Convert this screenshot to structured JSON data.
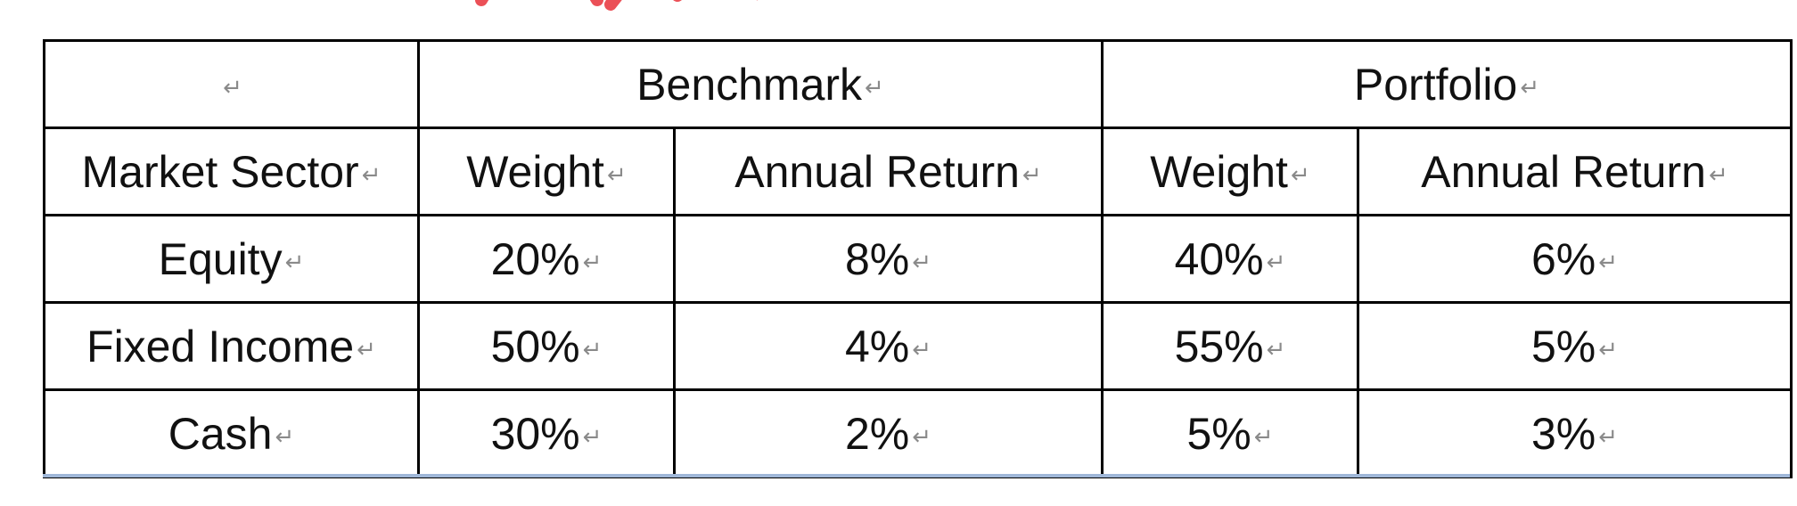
{
  "colors": {
    "border": "#000000",
    "watermark": "#e8323a",
    "paragraph_mark": "#8a8a8a"
  },
  "table": {
    "paragraph_mark": "↵",
    "group_header": {
      "empty": "",
      "benchmark": "Benchmark",
      "portfolio": "Portfolio"
    },
    "col_header": {
      "market_sector": "Market Sector",
      "bench_weight": "Weight",
      "bench_return": "Annual Return",
      "port_weight": "Weight",
      "port_return": "Annual Return"
    },
    "rows": [
      {
        "sector": "Equity",
        "bench_weight": "20%",
        "bench_return": "8%",
        "port_weight": "40%",
        "port_return": "6%"
      },
      {
        "sector": "Fixed Income",
        "bench_weight": "50%",
        "bench_return": "4%",
        "port_weight": "55%",
        "port_return": "5%"
      },
      {
        "sector": "Cash",
        "bench_weight": "30%",
        "bench_return": "2%",
        "port_weight": "5%",
        "port_return": "3%"
      }
    ]
  }
}
